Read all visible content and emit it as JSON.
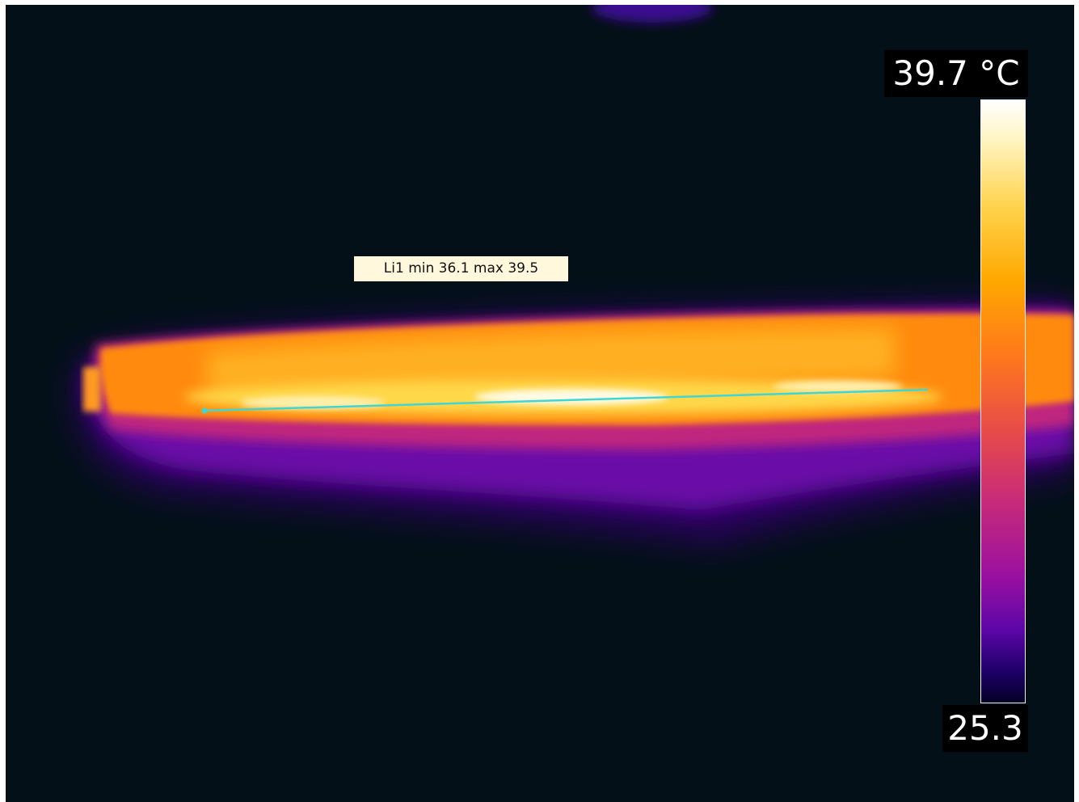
{
  "thermal_image": {
    "palette_colors": {
      "background": "#031017",
      "hot": "#ffffff",
      "warm": "#ffa800",
      "mid": "#c62a7a",
      "cool": "#5c06a8",
      "line_tool": "#3fd6d6"
    }
  },
  "temperature_scale": {
    "max_label": "39.7 °C",
    "min_label": "25.3"
  },
  "line_measurement": {
    "label": "Li1 min 36.1 max 39.5"
  }
}
